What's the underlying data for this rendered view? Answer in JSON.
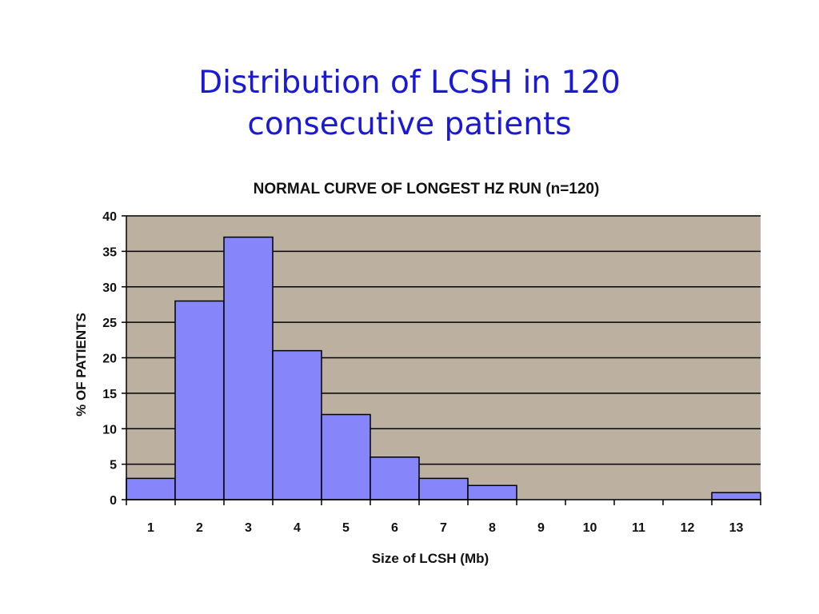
{
  "slide": {
    "title_line1": "Distribution of LCSH in 120",
    "title_line2": "consecutive patients"
  },
  "colors": {
    "title_text": "#1a1ad6",
    "plot_background": "#bcb0a0",
    "bar_fill": "#8686fa",
    "bar_stroke": "#000000",
    "gridline": "#000000"
  },
  "chart_data": {
    "type": "bar",
    "title": "NORMAL CURVE OF LONGEST HZ RUN (n=120)",
    "xlabel": "Size of LCSH (Mb)",
    "ylabel": "% OF PATIENTS",
    "categories": [
      "1",
      "2",
      "3",
      "4",
      "5",
      "6",
      "7",
      "8",
      "9",
      "10",
      "11",
      "12",
      "13"
    ],
    "values": [
      3,
      28,
      37,
      21,
      12,
      6,
      3,
      2,
      0,
      0,
      0,
      0,
      1
    ],
    "ylim": [
      0,
      40
    ],
    "yticks": [
      0,
      5,
      10,
      15,
      20,
      25,
      30,
      35,
      40
    ],
    "grid": true,
    "legend": "none"
  }
}
